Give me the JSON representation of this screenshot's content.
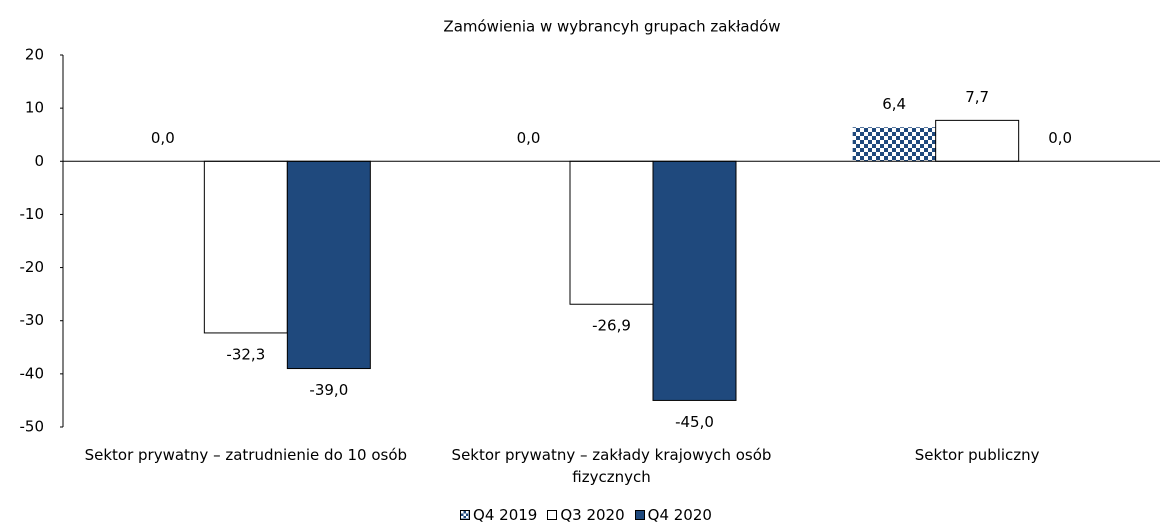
{
  "chart_data": {
    "type": "bar",
    "title": "Zamówienia w wybrancyh grupach zakładów",
    "categories": [
      "Sektor prywatny – zatrudnienie do 10 osób",
      "Sektor prywatny – zakłady krajowych osób fizycznych",
      "Sektor publiczny"
    ],
    "series": [
      {
        "name": "Q4 2019",
        "color": "#1f497d",
        "pattern": "checker",
        "values": [
          0,
          0,
          6.4
        ],
        "value_labels": [
          "0,0",
          "0,0",
          "6,4"
        ]
      },
      {
        "name": "Q3 2020",
        "color": "#ffffff",
        "values": [
          -32.3,
          -26.9,
          7.7
        ],
        "value_labels": [
          "-32,3",
          "-26,9",
          "7,7"
        ]
      },
      {
        "name": "Q4 2020",
        "color": "#1f497d",
        "values": [
          -39,
          -45,
          0
        ],
        "value_labels": [
          "-39,0",
          "-45,0",
          "0,0"
        ]
      }
    ],
    "ylim": [
      -50,
      20
    ],
    "yticks": [
      -50,
      -40,
      -30,
      -20,
      -10,
      0,
      10,
      20
    ],
    "legend": "bottom"
  }
}
